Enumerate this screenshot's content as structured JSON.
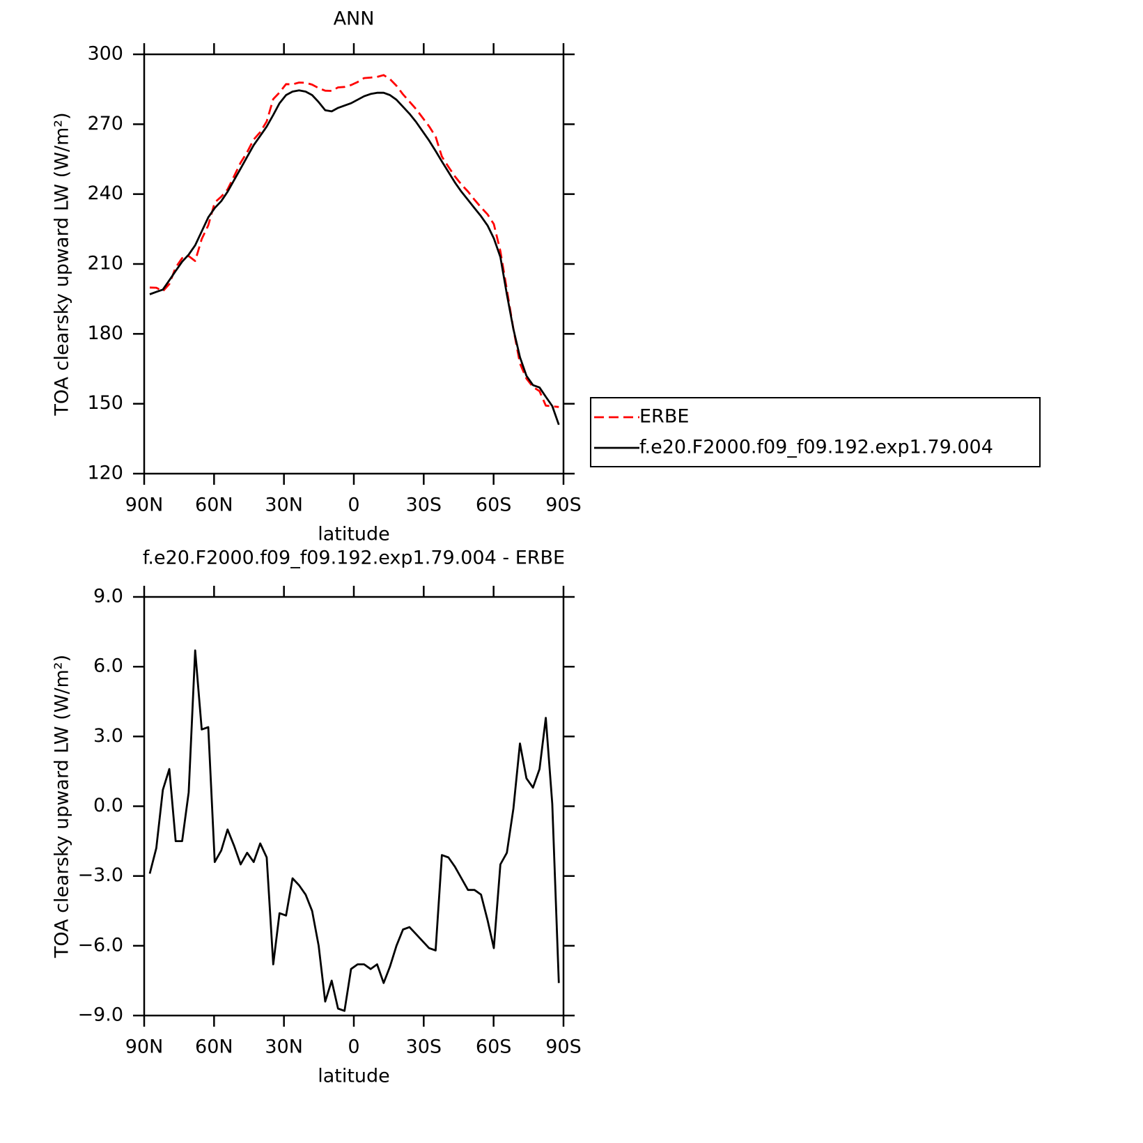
{
  "chart_data": [
    {
      "type": "line",
      "title": "ANN",
      "ylabel": "TOA clearsky upward LW (W/m²)",
      "xlabel": "latitude",
      "xlim": [
        90,
        -90
      ],
      "xticks": [
        {
          "value": 90,
          "label": "90N"
        },
        {
          "value": 60,
          "label": "60N"
        },
        {
          "value": 30,
          "label": "30N"
        },
        0,
        {
          "value": -30,
          "label": "30S"
        },
        {
          "value": -60,
          "label": "60S"
        },
        {
          "value": -90,
          "label": "90S"
        }
      ],
      "ylim": [
        120,
        300
      ],
      "yticks": [
        120,
        150,
        180,
        210,
        240,
        270,
        300
      ],
      "x": [
        87.6,
        84.8,
        82.0,
        79.2,
        76.5,
        73.7,
        70.9,
        68.1,
        65.3,
        62.5,
        59.7,
        56.9,
        54.2,
        51.4,
        48.6,
        45.8,
        43.0,
        40.2,
        37.4,
        34.6,
        31.9,
        29.1,
        26.3,
        23.5,
        20.7,
        17.9,
        15.1,
        12.3,
        9.5,
        6.8,
        4.0,
        1.2,
        -1.6,
        -4.4,
        -7.2,
        -10.0,
        -12.8,
        -15.5,
        -18.3,
        -21.1,
        -23.9,
        -26.7,
        -29.5,
        -32.3,
        -35.1,
        -37.8,
        -40.6,
        -43.4,
        -46.2,
        -49.0,
        -51.8,
        -54.6,
        -57.4,
        -60.1,
        -62.9,
        -65.7,
        -68.5,
        -71.3,
        -74.1,
        -76.9,
        -79.7,
        -82.4,
        -85.2,
        -88.0
      ],
      "legend": "right",
      "series": [
        {
          "name": "ERBE",
          "color": "#ff0000",
          "dashed": true,
          "values": [
            199.9,
            199.8,
            198.3,
            201.4,
            208.5,
            212.5,
            213.4,
            211.3,
            220.7,
            226.6,
            236.4,
            238.9,
            242,
            247.7,
            253.5,
            258,
            263.4,
            266.6,
            271.2,
            280.8,
            283.6,
            287.2,
            287.1,
            287.9,
            287.8,
            287,
            285.5,
            284.4,
            284.3,
            285.8,
            286,
            286.8,
            288.1,
            289.8,
            290,
            290.3,
            291.1,
            289.4,
            286.5,
            282.8,
            279.7,
            276.5,
            272.8,
            269.1,
            264.7,
            256.1,
            251.7,
            247.6,
            244.1,
            241.1,
            237.6,
            234.3,
            231.3,
            227.1,
            215.5,
            199,
            182.1,
            167.3,
            160.8,
            157.2,
            155.4,
            149.2,
            148.9,
            148.6
          ]
        },
        {
          "name": "f.e20.F2000.f09_f09.192.exp1.79.004",
          "color": "#000000",
          "dashed": false,
          "values": [
            197,
            198,
            199,
            203,
            207,
            211,
            214,
            218,
            224,
            230,
            234,
            237,
            241,
            246,
            251,
            256,
            261,
            265,
            269,
            274,
            279,
            282.5,
            284,
            284.5,
            284,
            282.5,
            279.5,
            276,
            275.5,
            277,
            278,
            279,
            280.5,
            282,
            283,
            283.5,
            283.5,
            282.5,
            280.5,
            277.5,
            274.5,
            271,
            267,
            263,
            258.5,
            254,
            249.5,
            245,
            241,
            237.5,
            234,
            230.5,
            226.5,
            221,
            213,
            197,
            182,
            170,
            162,
            158,
            157,
            153,
            149,
            141
          ]
        }
      ]
    },
    {
      "type": "line",
      "title": "f.e20.F2000.f09_f09.192.exp1.79.004 - ERBE",
      "ylabel": "TOA clearsky upward LW (W/m²)",
      "xlabel": "latitude",
      "xlim": [
        90,
        -90
      ],
      "xticks": [
        {
          "value": 90,
          "label": "90N"
        },
        {
          "value": 60,
          "label": "60N"
        },
        {
          "value": 30,
          "label": "30N"
        },
        0,
        {
          "value": -30,
          "label": "30S"
        },
        {
          "value": -60,
          "label": "60S"
        },
        {
          "value": -90,
          "label": "90S"
        }
      ],
      "ylim": [
        -9,
        9
      ],
      "yticks": [
        {
          "value": -9,
          "label": "−9.0"
        },
        {
          "value": -6,
          "label": "−6.0"
        },
        {
          "value": -3,
          "label": "−3.0"
        },
        {
          "value": 0,
          "label": "0.0"
        },
        {
          "value": 3,
          "label": "3.0"
        },
        {
          "value": 6,
          "label": "6.0"
        },
        {
          "value": 9,
          "label": "9.0"
        }
      ],
      "x": [
        87.6,
        84.8,
        82.0,
        79.2,
        76.5,
        73.7,
        70.9,
        68.1,
        65.3,
        62.5,
        59.7,
        56.9,
        54.2,
        51.4,
        48.6,
        45.8,
        43.0,
        40.2,
        37.4,
        34.6,
        31.9,
        29.1,
        26.3,
        23.5,
        20.7,
        17.9,
        15.1,
        12.3,
        9.5,
        6.8,
        4.0,
        1.2,
        -1.6,
        -4.4,
        -7.2,
        -10.0,
        -12.8,
        -15.5,
        -18.3,
        -21.1,
        -23.9,
        -26.7,
        -29.5,
        -32.3,
        -35.1,
        -37.8,
        -40.6,
        -43.4,
        -46.2,
        -49.0,
        -51.8,
        -54.6,
        -57.4,
        -60.1,
        -62.9,
        -65.7,
        -68.5,
        -71.3,
        -74.1,
        -76.9,
        -79.7,
        -82.4,
        -85.2,
        -88.0
      ],
      "series": [
        {
          "color": "#000000",
          "dashed": false,
          "values": [
            -2.9,
            -1.8,
            0.7,
            1.6,
            -1.5,
            -1.5,
            0.6,
            6.7,
            3.3,
            3.4,
            -2.4,
            -1.9,
            -1.0,
            -1.7,
            -2.5,
            -2.0,
            -2.4,
            -1.6,
            -2.2,
            -6.8,
            -4.6,
            -4.7,
            -3.1,
            -3.4,
            -3.8,
            -4.5,
            -6.0,
            -8.4,
            -7.5,
            -8.7,
            -8.8,
            -7.0,
            -6.8,
            -6.8,
            -7.0,
            -6.8,
            -7.6,
            -6.9,
            -6.0,
            -5.3,
            -5.2,
            -5.5,
            -5.8,
            -6.1,
            -6.2,
            -2.1,
            -2.2,
            -2.6,
            -3.1,
            -3.6,
            -3.6,
            -3.8,
            -4.9,
            -6.1,
            -2.5,
            -2.0,
            -0.1,
            2.7,
            1.2,
            0.8,
            1.6,
            3.8,
            0.1,
            -7.6
          ]
        }
      ]
    }
  ]
}
